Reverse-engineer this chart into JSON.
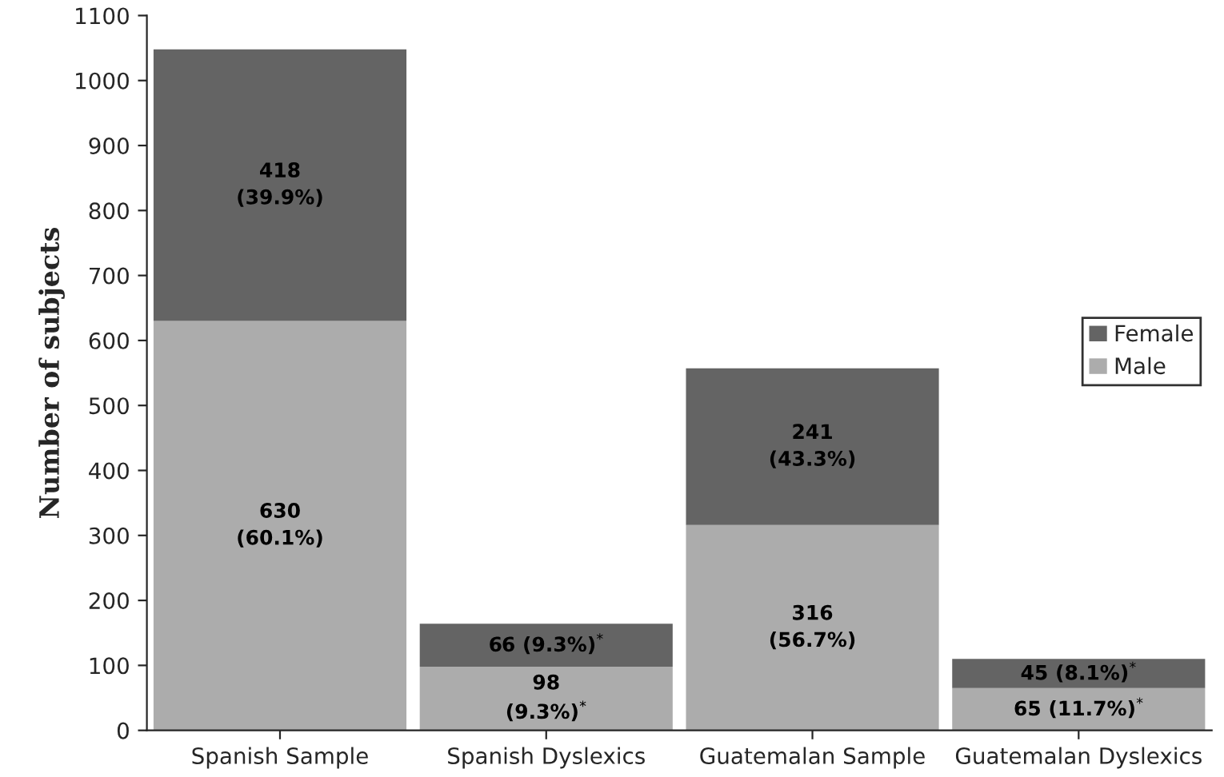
{
  "chart_data": {
    "type": "bar",
    "stacked": true,
    "ylabel": "Number of subjects",
    "categories": [
      "Spanish Sample",
      "Spanish Dyslexics",
      "Guatemalan Sample",
      "Guatemalan Dyslexics"
    ],
    "series": [
      {
        "name": "Male",
        "color": "#acacac",
        "values": [
          630,
          98,
          316,
          65
        ],
        "value_labels": [
          "630\n(60.1%)",
          "98\n(9.3%)$^{*}$",
          "316\n(56.7%)",
          "65 (11.7%)$^{*}$"
        ]
      },
      {
        "name": "Female",
        "color": "#646464",
        "values": [
          418,
          66,
          241,
          45
        ],
        "value_labels": [
          "418\n(39.9%)",
          "66 (9.3%)$^{*}$",
          "241\n(43.3%)",
          "45 (8.1%)$^{*}$"
        ]
      }
    ],
    "ylim": [
      0,
      1100
    ],
    "yticks": [
      0,
      100,
      200,
      300,
      400,
      500,
      600,
      700,
      800,
      900,
      1000,
      1100
    ],
    "grid": false,
    "legend": "right"
  }
}
